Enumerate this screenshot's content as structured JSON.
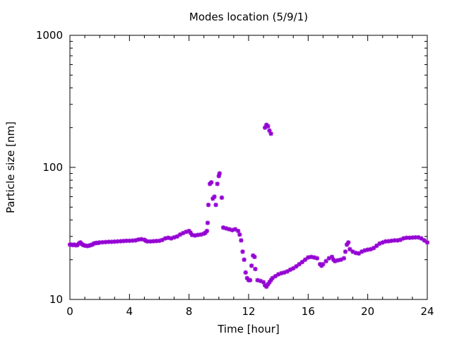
{
  "chart_data": {
    "type": "scatter",
    "title": "Modes location (5/9/1)",
    "xlabel": "Time [hour]",
    "ylabel": "Particle size [nm]",
    "xlim": [
      0,
      24
    ],
    "ylim": [
      10,
      1000
    ],
    "y_scale": "log",
    "x_ticks": [
      0,
      4,
      8,
      12,
      16,
      20,
      24
    ],
    "y_ticks": [
      10,
      100,
      1000
    ],
    "grid": false,
    "legend": "none",
    "marker": "asterisk",
    "series": [
      {
        "color": "#9400d3",
        "points": [
          [
            0.0,
            26.0
          ],
          [
            0.1,
            26.0
          ],
          [
            0.2,
            25.8
          ],
          [
            0.3,
            26.0
          ],
          [
            0.4,
            25.7
          ],
          [
            0.5,
            25.8
          ],
          [
            0.6,
            26.5
          ],
          [
            0.7,
            27.0
          ],
          [
            0.8,
            26.3
          ],
          [
            0.9,
            25.8
          ],
          [
            1.0,
            25.6
          ],
          [
            1.1,
            25.5
          ],
          [
            1.2,
            25.4
          ],
          [
            1.3,
            25.6
          ],
          [
            1.4,
            25.8
          ],
          [
            1.5,
            26.0
          ],
          [
            1.6,
            26.5
          ],
          [
            1.7,
            26.7
          ],
          [
            1.8,
            26.8
          ],
          [
            1.9,
            26.8
          ],
          [
            2.0,
            27.0
          ],
          [
            2.2,
            27.1
          ],
          [
            2.4,
            27.2
          ],
          [
            2.6,
            27.3
          ],
          [
            2.8,
            27.3
          ],
          [
            3.0,
            27.4
          ],
          [
            3.2,
            27.5
          ],
          [
            3.4,
            27.6
          ],
          [
            3.6,
            27.7
          ],
          [
            3.8,
            27.8
          ],
          [
            4.0,
            27.8
          ],
          [
            4.2,
            27.9
          ],
          [
            4.4,
            28.0
          ],
          [
            4.6,
            28.4
          ],
          [
            4.8,
            28.6
          ],
          [
            5.0,
            28.3
          ],
          [
            5.1,
            27.8
          ],
          [
            5.2,
            27.5
          ],
          [
            5.4,
            27.5
          ],
          [
            5.6,
            27.6
          ],
          [
            5.8,
            27.7
          ],
          [
            6.0,
            27.8
          ],
          [
            6.2,
            28.2
          ],
          [
            6.4,
            29.0
          ],
          [
            6.6,
            29.3
          ],
          [
            6.8,
            29.0
          ],
          [
            7.0,
            29.5
          ],
          [
            7.2,
            30.0
          ],
          [
            7.4,
            31.0
          ],
          [
            7.6,
            31.8
          ],
          [
            7.8,
            32.5
          ],
          [
            8.0,
            33.0
          ],
          [
            8.1,
            32.0
          ],
          [
            8.2,
            30.8
          ],
          [
            8.4,
            30.5
          ],
          [
            8.6,
            30.8
          ],
          [
            8.8,
            31.0
          ],
          [
            9.0,
            31.5
          ],
          [
            9.1,
            32.0
          ],
          [
            9.2,
            33.0
          ],
          [
            9.25,
            38.0
          ],
          [
            9.3,
            52.0
          ],
          [
            9.4,
            75.0
          ],
          [
            9.5,
            77.0
          ],
          [
            9.6,
            58.0
          ],
          [
            9.7,
            60.0
          ],
          [
            9.8,
            52.0
          ],
          [
            9.9,
            75.0
          ],
          [
            10.0,
            86.0
          ],
          [
            10.05,
            90.0
          ],
          [
            10.2,
            59.0
          ],
          [
            10.3,
            35.0
          ],
          [
            10.5,
            34.5
          ],
          [
            10.7,
            34.0
          ],
          [
            10.9,
            33.5
          ],
          [
            11.1,
            34.0
          ],
          [
            11.3,
            33.0
          ],
          [
            11.4,
            31.0
          ],
          [
            11.5,
            28.0
          ],
          [
            11.6,
            23.0
          ],
          [
            11.7,
            20.0
          ],
          [
            11.8,
            16.0
          ],
          [
            11.9,
            14.5
          ],
          [
            12.0,
            14.0
          ],
          [
            12.1,
            14.0
          ],
          [
            12.2,
            18.0
          ],
          [
            12.3,
            21.5
          ],
          [
            12.4,
            21.0
          ],
          [
            12.45,
            17.0
          ],
          [
            12.6,
            14.0
          ],
          [
            12.8,
            13.8
          ],
          [
            13.0,
            13.5
          ],
          [
            13.1,
            12.8
          ],
          [
            13.2,
            12.5
          ],
          [
            13.3,
            13.0
          ],
          [
            13.4,
            13.5
          ],
          [
            13.5,
            14.0
          ],
          [
            13.6,
            14.5
          ],
          [
            13.8,
            15.0
          ],
          [
            14.0,
            15.5
          ],
          [
            14.2,
            15.8
          ],
          [
            14.4,
            16.0
          ],
          [
            14.6,
            16.3
          ],
          [
            14.8,
            16.8
          ],
          [
            15.0,
            17.2
          ],
          [
            15.2,
            17.8
          ],
          [
            15.4,
            18.5
          ],
          [
            15.6,
            19.2
          ],
          [
            15.8,
            20.0
          ],
          [
            16.0,
            20.8
          ],
          [
            16.2,
            21.0
          ],
          [
            16.4,
            20.8
          ],
          [
            16.6,
            20.5
          ],
          [
            16.8,
            18.5
          ],
          [
            16.9,
            18.0
          ],
          [
            17.0,
            18.5
          ],
          [
            17.2,
            19.5
          ],
          [
            17.4,
            20.5
          ],
          [
            17.6,
            21.0
          ],
          [
            17.7,
            20.0
          ],
          [
            17.8,
            19.5
          ],
          [
            18.0,
            19.8
          ],
          [
            18.2,
            20.0
          ],
          [
            18.4,
            20.5
          ],
          [
            18.5,
            23.0
          ],
          [
            18.6,
            26.0
          ],
          [
            18.7,
            27.0
          ],
          [
            18.8,
            24.0
          ],
          [
            19.0,
            23.0
          ],
          [
            19.2,
            22.5
          ],
          [
            19.4,
            22.3
          ],
          [
            19.6,
            23.0
          ],
          [
            19.8,
            23.5
          ],
          [
            20.0,
            23.8
          ],
          [
            20.2,
            24.0
          ],
          [
            20.4,
            24.5
          ],
          [
            20.6,
            25.5
          ],
          [
            20.8,
            26.5
          ],
          [
            21.0,
            27.0
          ],
          [
            21.2,
            27.5
          ],
          [
            21.4,
            27.6
          ],
          [
            21.6,
            27.8
          ],
          [
            21.8,
            28.0
          ],
          [
            22.0,
            28.0
          ],
          [
            22.2,
            28.3
          ],
          [
            22.4,
            29.0
          ],
          [
            22.6,
            29.3
          ],
          [
            22.8,
            29.3
          ],
          [
            23.0,
            29.4
          ],
          [
            23.2,
            29.5
          ],
          [
            23.4,
            29.5
          ],
          [
            23.6,
            29.0
          ],
          [
            23.8,
            28.0
          ],
          [
            24.0,
            27.0
          ],
          [
            13.1,
            200.0
          ],
          [
            13.2,
            210.0
          ],
          [
            13.3,
            205.0
          ],
          [
            13.4,
            190.0
          ],
          [
            13.5,
            180.0
          ]
        ]
      }
    ]
  }
}
